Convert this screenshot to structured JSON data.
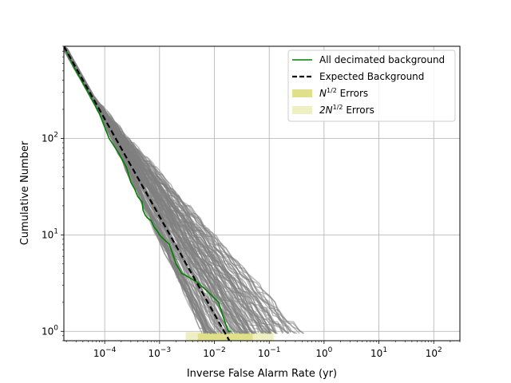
{
  "chart_data": {
    "type": "line",
    "xscale": "log",
    "yscale": "log",
    "xlabel": "Inverse False Alarm Rate (yr)",
    "ylabel": "Cumulative Number",
    "xlim": [
      1.8e-05,
      300
    ],
    "ylim": [
      0.8,
      900
    ],
    "grid": true,
    "legend_position": "top-right",
    "x_ticks": [
      {
        "value": 0.0001,
        "base": "10",
        "exp": "−4"
      },
      {
        "value": 0.001,
        "base": "10",
        "exp": "−3"
      },
      {
        "value": 0.01,
        "base": "10",
        "exp": "−2"
      },
      {
        "value": 0.1,
        "base": "10",
        "exp": "−1"
      },
      {
        "value": 1,
        "base": "10",
        "exp": "0"
      },
      {
        "value": 10,
        "base": "10",
        "exp": "1"
      },
      {
        "value": 100,
        "base": "10",
        "exp": "2"
      }
    ],
    "y_ticks": [
      {
        "value": 1,
        "base": "10",
        "exp": "0"
      },
      {
        "value": 10,
        "base": "10",
        "exp": "1"
      },
      {
        "value": 100,
        "base": "10",
        "exp": "2"
      }
    ],
    "legend": [
      {
        "label": "All decimated background",
        "kind": "line",
        "color": "#008000"
      },
      {
        "label": "Expected Background",
        "kind": "dashed",
        "color": "#000000"
      },
      {
        "label_base": "N",
        "label_sup": "1/2",
        "label_rest": " Errors",
        "kind": "patch",
        "color": "#e0e08a"
      },
      {
        "label_base": "2N",
        "label_sup": "1/2",
        "label_rest": " Errors",
        "kind": "patch",
        "color": "#efefc4"
      }
    ],
    "colors": {
      "decimated": "#008000",
      "expected": "#000000",
      "background_samples": "#808080",
      "error_1sigma": "#e0e08a",
      "error_2sigma": "#efefc4"
    },
    "series": [
      {
        "name": "All decimated background",
        "x": [
          1.8e-05,
          3e-05,
          5e-05,
          8e-05,
          0.00012,
          0.00018,
          0.00025,
          0.0003,
          0.00035,
          0.0004,
          0.00048,
          0.0005,
          0.00055,
          0.0006,
          0.0007,
          0.0008,
          0.0009,
          0.001,
          0.0012,
          0.0015,
          0.0018,
          0.002,
          0.0025,
          0.003,
          0.005,
          0.008,
          0.012,
          0.014,
          0.016,
          0.018,
          0.02
        ],
        "y": [
          900,
          500,
          300,
          180,
          100,
          70,
          50,
          35,
          30,
          25,
          22,
          18,
          16,
          15,
          14,
          12,
          11,
          10,
          9,
          8,
          6,
          5,
          4,
          3.8,
          3.2,
          2.5,
          2,
          1.5,
          1.2,
          1.0,
          1.0
        ]
      },
      {
        "name": "Expected Background",
        "x": [
          1.8e-05,
          0.0188
        ],
        "y": [
          900,
          0.8
        ]
      }
    ]
  }
}
